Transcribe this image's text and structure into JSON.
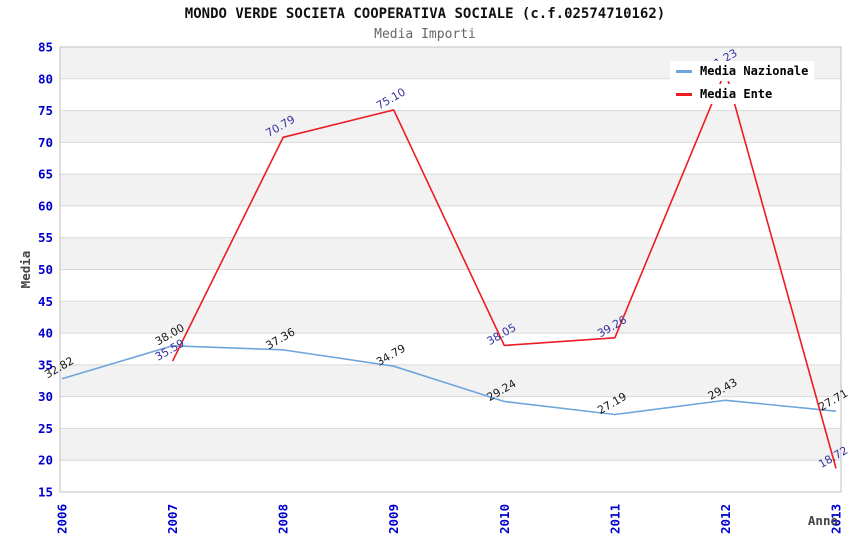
{
  "header": {
    "title": "MONDO VERDE SOCIETA COOPERATIVA SOCIALE (c.f.02574710162)",
    "subtitle": "Media Importi"
  },
  "legend": {
    "position": "top-right",
    "items": [
      {
        "label": "Media Nazionale",
        "color": "#6EA6DC"
      },
      {
        "label": "Media Ente",
        "color": "#ED1C24"
      }
    ]
  },
  "axes": {
    "y_title": "Media",
    "x_title": "Anno",
    "y_ticks": [
      15,
      20,
      25,
      30,
      35,
      40,
      45,
      50,
      55,
      60,
      65,
      70,
      75,
      80,
      85
    ],
    "x_ticks": [
      "2006",
      "2007",
      "2008",
      "2009",
      "2010",
      "2011",
      "2012",
      "2013"
    ],
    "tick_color": "#0000cc",
    "axis_title_color": "#444444"
  },
  "chart_data": {
    "type": "line",
    "title": "MONDO VERDE SOCIETA COOPERATIVA SOCIALE (c.f.02574710162)",
    "subtitle": "Media Importi",
    "categories": [
      "2006",
      "2007",
      "2008",
      "2009",
      "2010",
      "2011",
      "2012",
      "2013"
    ],
    "series": [
      {
        "name": "Media Nazionale",
        "color": "#6EA6DC",
        "label_color": "#1a1a1a",
        "values": [
          32.82,
          38.0,
          37.36,
          34.79,
          29.24,
          27.19,
          29.43,
          27.71
        ]
      },
      {
        "name": "Media Ente",
        "color": "#ED1C24",
        "label_color": "#3333A0",
        "values": [
          null,
          35.59,
          70.79,
          75.1,
          38.05,
          39.26,
          81.23,
          18.72
        ]
      }
    ],
    "xlabel": "Anno",
    "ylabel": "Media",
    "ylim": [
      15,
      85
    ],
    "ytick_step": 5,
    "grid": "horizontal alternating bands",
    "band_color": "#f2f2f2",
    "gridline_color": "#d9d9d9",
    "plot_border_color": "#c0c0c0",
    "legend_position": "top-right",
    "point_label_rotation_deg": -30,
    "point_label_format": "0.00"
  }
}
